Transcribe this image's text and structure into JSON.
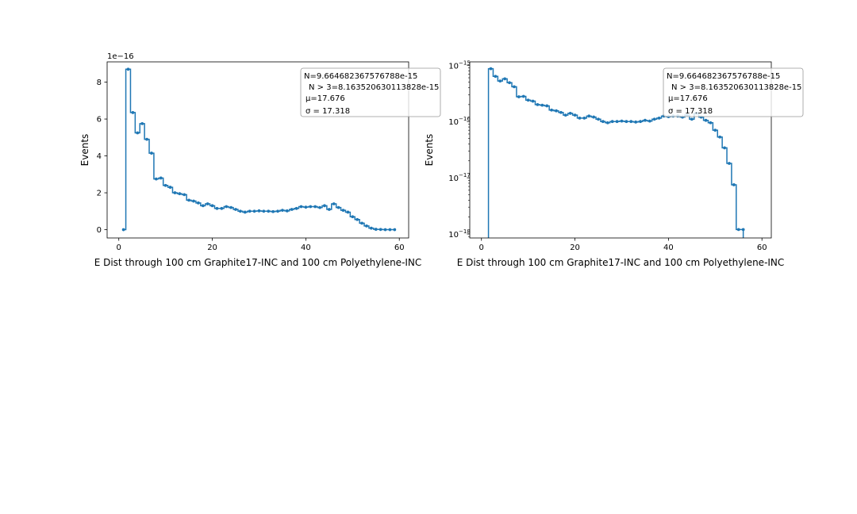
{
  "chart_data": [
    {
      "type": "line",
      "drawstyle": "steps-mid",
      "marker": "dot",
      "yscale": "linear",
      "xlabel": "E Dist through 100 cm Graphite17-INC and 100 cm Polyethylene-INC",
      "ylabel": "Events",
      "offset_text": "1e−16",
      "xlim": [
        -2.5,
        62
      ],
      "ylim": [
        -0.45,
        9.1
      ],
      "xticks": [
        0,
        20,
        40,
        60
      ],
      "xtick_labels": [
        "0",
        "20",
        "40",
        "60"
      ],
      "yticks": [
        0,
        2,
        4,
        6,
        8
      ],
      "ytick_labels": [
        "0",
        "2",
        "4",
        "6",
        "8"
      ],
      "grid": false,
      "stats": [
        "N=9.664682367576788e-15",
        "N > 3=8.163520630113828e-15",
        "μ=17.676",
        "σ = 17.318"
      ],
      "x": [
        1,
        2,
        3,
        4,
        5,
        6,
        7,
        8,
        9,
        10,
        11,
        12,
        13,
        14,
        15,
        16,
        17,
        18,
        19,
        20,
        21,
        22,
        23,
        24,
        25,
        26,
        27,
        28,
        29,
        30,
        31,
        32,
        33,
        34,
        35,
        36,
        37,
        38,
        39,
        40,
        41,
        42,
        43,
        44,
        45,
        46,
        47,
        48,
        49,
        50,
        51,
        52,
        53,
        54,
        55,
        56,
        57,
        58,
        59
      ],
      "y": [
        0.0,
        8.7,
        6.35,
        5.25,
        5.75,
        4.9,
        4.15,
        2.75,
        2.8,
        2.4,
        2.3,
        2.0,
        1.95,
        1.9,
        1.6,
        1.55,
        1.45,
        1.3,
        1.4,
        1.3,
        1.15,
        1.15,
        1.25,
        1.2,
        1.1,
        1.0,
        0.95,
        1.0,
        1.0,
        1.02,
        1.0,
        1.0,
        0.98,
        1.0,
        1.05,
        1.02,
        1.1,
        1.15,
        1.25,
        1.22,
        1.25,
        1.25,
        1.2,
        1.3,
        1.1,
        1.4,
        1.2,
        1.05,
        0.95,
        0.7,
        0.55,
        0.35,
        0.2,
        0.08,
        0.02,
        0.01,
        0.0,
        0.0,
        0.0
      ]
    },
    {
      "type": "line",
      "drawstyle": "steps-mid",
      "marker": "dot",
      "yscale": "log",
      "xlabel": "E Dist through 100 cm Graphite17-INC and 100 cm Polyethylene-INC",
      "ylabel": "Events",
      "xlim": [
        -2.5,
        62
      ],
      "ylim": [
        8.5e-19,
        1.15e-15
      ],
      "xticks": [
        0,
        20,
        40,
        60
      ],
      "xtick_labels": [
        "0",
        "20",
        "40",
        "60"
      ],
      "yticks": [
        1e-18,
        1e-17,
        1e-16,
        1e-15
      ],
      "ytick_labels": [
        "10",
        "10",
        "10",
        "10"
      ],
      "ytick_exponents": [
        "−18",
        "−17",
        "−16",
        "−15"
      ],
      "grid": false,
      "stats": [
        "N=9.664682367576788e-15",
        "N > 3=8.163520630113828e-15",
        "μ=17.676",
        "σ = 17.318"
      ],
      "x": [
        2,
        3,
        4,
        5,
        6,
        7,
        8,
        9,
        10,
        11,
        12,
        13,
        14,
        15,
        16,
        17,
        18,
        19,
        20,
        21,
        22,
        23,
        24,
        25,
        26,
        27,
        28,
        29,
        30,
        31,
        32,
        33,
        34,
        35,
        36,
        37,
        38,
        39,
        40,
        41,
        42,
        43,
        44,
        45,
        46,
        47,
        48,
        49,
        50,
        51,
        52,
        53,
        54,
        55,
        56
      ],
      "y": [
        8.7e-16,
        6.35e-16,
        5.25e-16,
        5.75e-16,
        4.9e-16,
        4.15e-16,
        2.75e-16,
        2.8e-16,
        2.4e-16,
        2.3e-16,
        2e-16,
        1.95e-16,
        1.9e-16,
        1.6e-16,
        1.55e-16,
        1.45e-16,
        1.3e-16,
        1.4e-16,
        1.3e-16,
        1.15e-16,
        1.15e-16,
        1.25e-16,
        1.2e-16,
        1.1e-16,
        1e-16,
        9.5e-17,
        1e-16,
        1e-16,
        1.02e-16,
        1e-16,
        1e-16,
        9.8e-17,
        1e-16,
        1.05e-16,
        1.02e-16,
        1.1e-16,
        1.15e-16,
        1.25e-16,
        1.22e-16,
        1.25e-16,
        1.25e-16,
        1.2e-16,
        1.3e-16,
        1.1e-16,
        1.4e-16,
        1.2e-16,
        1.05e-16,
        9.5e-17,
        7e-17,
        5.3e-17,
        3.4e-17,
        1.8e-17,
        7.5e-18,
        1.2e-18,
        1.2e-18
      ]
    }
  ],
  "colors": {
    "series": "#1f77b4",
    "axes": "#000000",
    "legend_border": "#999999"
  }
}
